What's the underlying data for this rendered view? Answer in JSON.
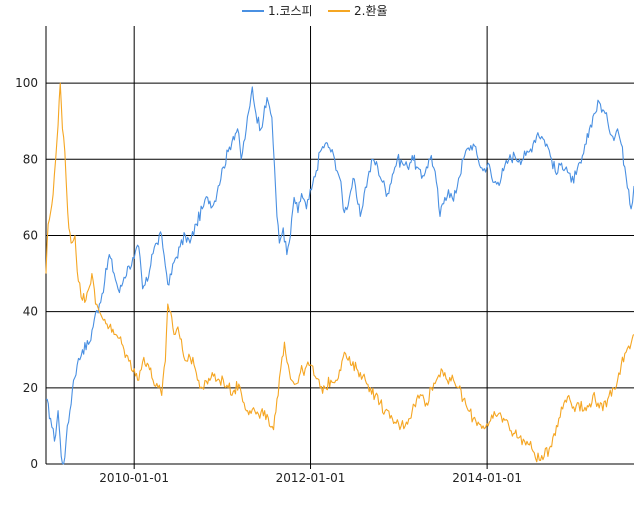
{
  "chart_data": {
    "type": "line",
    "legend_position": "top-center",
    "grid": true,
    "xlim": [
      "2009-01-01",
      "2015-09-01"
    ],
    "ylim": [
      0,
      115
    ],
    "y_ticks": [
      0,
      20,
      40,
      60,
      80,
      100
    ],
    "x_ticks": [
      {
        "date": "2010-01-01",
        "label": "2010-01-01"
      },
      {
        "date": "2012-01-01",
        "label": "2012-01-01"
      },
      {
        "date": "2014-01-01",
        "label": "2014-01-01"
      }
    ],
    "series": [
      {
        "name": "1.코스피",
        "color": "#4a90e2",
        "points": [
          [
            "2009-01-01",
            17
          ],
          [
            "2009-01-20",
            12
          ],
          [
            "2009-02-05",
            6
          ],
          [
            "2009-02-20",
            14
          ],
          [
            "2009-03-05",
            2
          ],
          [
            "2009-03-15",
            0
          ],
          [
            "2009-03-25",
            6
          ],
          [
            "2009-04-10",
            14
          ],
          [
            "2009-04-25",
            22
          ],
          [
            "2009-05-10",
            26
          ],
          [
            "2009-06-01",
            30
          ],
          [
            "2009-07-01",
            32
          ],
          [
            "2009-07-20",
            38
          ],
          [
            "2009-08-10",
            42
          ],
          [
            "2009-09-01",
            48
          ],
          [
            "2009-09-20",
            55
          ],
          [
            "2009-10-10",
            50
          ],
          [
            "2009-11-01",
            45
          ],
          [
            "2009-11-20",
            49
          ],
          [
            "2009-12-10",
            52
          ],
          [
            "2010-01-01",
            54
          ],
          [
            "2010-01-20",
            57
          ],
          [
            "2010-02-05",
            46
          ],
          [
            "2010-02-25",
            48
          ],
          [
            "2010-03-15",
            55
          ],
          [
            "2010-04-05",
            58
          ],
          [
            "2010-04-25",
            60
          ],
          [
            "2010-05-10",
            52
          ],
          [
            "2010-05-25",
            47
          ],
          [
            "2010-06-15",
            53
          ],
          [
            "2010-07-10",
            57
          ],
          [
            "2010-08-01",
            60
          ],
          [
            "2010-08-20",
            58
          ],
          [
            "2010-09-15",
            63
          ],
          [
            "2010-10-10",
            67
          ],
          [
            "2010-11-01",
            70
          ],
          [
            "2010-11-25",
            68
          ],
          [
            "2010-12-15",
            73
          ],
          [
            "2011-01-05",
            78
          ],
          [
            "2011-01-25",
            82
          ],
          [
            "2011-02-15",
            86
          ],
          [
            "2011-03-05",
            88
          ],
          [
            "2011-03-20",
            80
          ],
          [
            "2011-04-10",
            88
          ],
          [
            "2011-04-25",
            94
          ],
          [
            "2011-05-05",
            99
          ],
          [
            "2011-05-20",
            92
          ],
          [
            "2011-06-10",
            88
          ],
          [
            "2011-06-25",
            94
          ],
          [
            "2011-07-10",
            95
          ],
          [
            "2011-07-25",
            91
          ],
          [
            "2011-08-05",
            78
          ],
          [
            "2011-08-15",
            65
          ],
          [
            "2011-08-25",
            58
          ],
          [
            "2011-09-10",
            62
          ],
          [
            "2011-09-25",
            55
          ],
          [
            "2011-10-10",
            60
          ],
          [
            "2011-10-25",
            70
          ],
          [
            "2011-11-10",
            66
          ],
          [
            "2011-11-25",
            71
          ],
          [
            "2011-12-15",
            67
          ],
          [
            "2012-01-05",
            72
          ],
          [
            "2012-01-25",
            77
          ],
          [
            "2012-02-10",
            82
          ],
          [
            "2012-03-01",
            84
          ],
          [
            "2012-03-20",
            83
          ],
          [
            "2012-04-10",
            80
          ],
          [
            "2012-05-01",
            75
          ],
          [
            "2012-05-20",
            66
          ],
          [
            "2012-06-10",
            70
          ],
          [
            "2012-06-25",
            75
          ],
          [
            "2012-07-10",
            70
          ],
          [
            "2012-07-25",
            65
          ],
          [
            "2012-08-10",
            71
          ],
          [
            "2012-08-25",
            75
          ],
          [
            "2012-09-15",
            80
          ],
          [
            "2012-10-05",
            78
          ],
          [
            "2012-10-25",
            74
          ],
          [
            "2012-11-15",
            71
          ],
          [
            "2012-12-05",
            76
          ],
          [
            "2012-12-25",
            80
          ],
          [
            "2013-01-15",
            79
          ],
          [
            "2013-02-05",
            78
          ],
          [
            "2013-02-25",
            81
          ],
          [
            "2013-03-15",
            78
          ],
          [
            "2013-04-05",
            75
          ],
          [
            "2013-04-25",
            78
          ],
          [
            "2013-05-15",
            81
          ],
          [
            "2013-06-05",
            74
          ],
          [
            "2013-06-20",
            65
          ],
          [
            "2013-07-10",
            70
          ],
          [
            "2013-07-25",
            72
          ],
          [
            "2013-08-15",
            69
          ],
          [
            "2013-09-05",
            75
          ],
          [
            "2013-09-25",
            80
          ],
          [
            "2013-10-15",
            83
          ],
          [
            "2013-11-05",
            84
          ],
          [
            "2013-11-25",
            80
          ],
          [
            "2013-12-15",
            77
          ],
          [
            "2014-01-05",
            79
          ],
          [
            "2014-01-25",
            74
          ],
          [
            "2014-02-15",
            74
          ],
          [
            "2014-03-10",
            77
          ],
          [
            "2014-04-01",
            80
          ],
          [
            "2014-04-25",
            81
          ],
          [
            "2014-05-15",
            80
          ],
          [
            "2014-06-10",
            81
          ],
          [
            "2014-06-25",
            82
          ],
          [
            "2014-07-15",
            85
          ],
          [
            "2014-07-30",
            87
          ],
          [
            "2014-08-15",
            86
          ],
          [
            "2014-09-05",
            84
          ],
          [
            "2014-09-25",
            80
          ],
          [
            "2014-10-15",
            76
          ],
          [
            "2014-11-05",
            79
          ],
          [
            "2014-11-25",
            78
          ],
          [
            "2014-12-15",
            74
          ],
          [
            "2015-01-05",
            76
          ],
          [
            "2015-01-25",
            79
          ],
          [
            "2015-02-15",
            84
          ],
          [
            "2015-03-05",
            89
          ],
          [
            "2015-03-20",
            92
          ],
          [
            "2015-04-10",
            95
          ],
          [
            "2015-04-25",
            93
          ],
          [
            "2015-05-15",
            90
          ],
          [
            "2015-06-05",
            86
          ],
          [
            "2015-06-25",
            88
          ],
          [
            "2015-07-10",
            84
          ],
          [
            "2015-07-25",
            78
          ],
          [
            "2015-08-10",
            72
          ],
          [
            "2015-08-20",
            67
          ],
          [
            "2015-09-01",
            73
          ]
        ]
      },
      {
        "name": "2.환율",
        "color": "#f5a623",
        "points": [
          [
            "2009-01-01",
            50
          ],
          [
            "2009-01-10",
            63
          ],
          [
            "2009-01-25",
            68
          ],
          [
            "2009-02-10",
            80
          ],
          [
            "2009-02-20",
            89
          ],
          [
            "2009-03-01",
            100
          ],
          [
            "2009-03-10",
            88
          ],
          [
            "2009-03-20",
            82
          ],
          [
            "2009-04-01",
            66
          ],
          [
            "2009-04-15",
            58
          ],
          [
            "2009-05-01",
            60
          ],
          [
            "2009-05-15",
            48
          ],
          [
            "2009-06-01",
            43
          ],
          [
            "2009-06-20",
            45
          ],
          [
            "2009-07-10",
            50
          ],
          [
            "2009-07-25",
            42
          ],
          [
            "2009-08-10",
            40
          ],
          [
            "2009-09-01",
            38
          ],
          [
            "2009-09-20",
            36
          ],
          [
            "2009-10-10",
            34
          ],
          [
            "2009-11-01",
            33
          ],
          [
            "2009-11-20",
            30
          ],
          [
            "2009-12-10",
            27
          ],
          [
            "2010-01-01",
            25
          ],
          [
            "2010-01-20",
            22
          ],
          [
            "2010-02-10",
            28
          ],
          [
            "2010-03-01",
            26
          ],
          [
            "2010-03-20",
            22
          ],
          [
            "2010-04-10",
            20
          ],
          [
            "2010-04-25",
            18
          ],
          [
            "2010-05-10",
            27
          ],
          [
            "2010-05-20",
            42
          ],
          [
            "2010-06-01",
            40
          ],
          [
            "2010-06-15",
            34
          ],
          [
            "2010-07-01",
            36
          ],
          [
            "2010-07-20",
            30
          ],
          [
            "2010-08-10",
            27
          ],
          [
            "2010-09-01",
            28
          ],
          [
            "2010-09-20",
            22
          ],
          [
            "2010-10-10",
            20
          ],
          [
            "2010-11-01",
            21
          ],
          [
            "2010-11-20",
            24
          ],
          [
            "2010-12-10",
            22
          ],
          [
            "2011-01-05",
            22
          ],
          [
            "2011-01-25",
            20
          ],
          [
            "2011-02-15",
            19
          ],
          [
            "2011-03-10",
            21
          ],
          [
            "2011-04-01",
            16
          ],
          [
            "2011-04-25",
            14
          ],
          [
            "2011-05-15",
            14
          ],
          [
            "2011-06-05",
            12
          ],
          [
            "2011-06-25",
            14
          ],
          [
            "2011-07-15",
            10
          ],
          [
            "2011-08-01",
            9
          ],
          [
            "2011-08-20",
            18
          ],
          [
            "2011-09-05",
            28
          ],
          [
            "2011-09-15",
            32
          ],
          [
            "2011-10-01",
            26
          ],
          [
            "2011-10-15",
            22
          ],
          [
            "2011-11-01",
            21
          ],
          [
            "2011-11-20",
            24
          ],
          [
            "2011-12-10",
            25
          ],
          [
            "2012-01-01",
            26
          ],
          [
            "2012-01-20",
            23
          ],
          [
            "2012-02-10",
            20
          ],
          [
            "2012-03-01",
            20
          ],
          [
            "2012-03-25",
            22
          ],
          [
            "2012-04-15",
            22
          ],
          [
            "2012-05-10",
            27
          ],
          [
            "2012-05-25",
            29
          ],
          [
            "2012-06-15",
            26
          ],
          [
            "2012-07-10",
            25
          ],
          [
            "2012-07-25",
            24
          ],
          [
            "2012-08-15",
            22
          ],
          [
            "2012-09-05",
            20
          ],
          [
            "2012-09-25",
            18
          ],
          [
            "2012-10-15",
            16
          ],
          [
            "2012-11-05",
            14
          ],
          [
            "2012-11-25",
            12
          ],
          [
            "2012-12-15",
            11
          ],
          [
            "2013-01-10",
            10
          ],
          [
            "2013-02-01",
            11
          ],
          [
            "2013-02-25",
            14
          ],
          [
            "2013-03-15",
            17
          ],
          [
            "2013-04-05",
            18
          ],
          [
            "2013-04-25",
            16
          ],
          [
            "2013-05-15",
            20
          ],
          [
            "2013-06-05",
            22
          ],
          [
            "2013-06-25",
            25
          ],
          [
            "2013-07-10",
            24
          ],
          [
            "2013-07-25",
            21
          ],
          [
            "2013-08-15",
            22
          ],
          [
            "2013-09-05",
            20
          ],
          [
            "2013-09-25",
            17
          ],
          [
            "2013-10-15",
            14
          ],
          [
            "2013-11-05",
            12
          ],
          [
            "2013-11-25",
            11
          ],
          [
            "2013-12-15",
            10
          ],
          [
            "2014-01-05",
            10
          ],
          [
            "2014-01-25",
            12
          ],
          [
            "2014-02-15",
            13
          ],
          [
            "2014-03-10",
            12
          ],
          [
            "2014-04-01",
            10
          ],
          [
            "2014-04-25",
            8
          ],
          [
            "2014-05-15",
            7
          ],
          [
            "2014-06-05",
            6
          ],
          [
            "2014-06-25",
            5
          ],
          [
            "2014-07-15",
            3
          ],
          [
            "2014-08-05",
            1
          ],
          [
            "2014-08-25",
            2
          ],
          [
            "2014-09-15",
            4
          ],
          [
            "2014-10-05",
            8
          ],
          [
            "2014-10-25",
            12
          ],
          [
            "2014-11-15",
            16
          ],
          [
            "2014-12-05",
            18
          ],
          [
            "2014-12-25",
            15
          ],
          [
            "2015-01-15",
            16
          ],
          [
            "2015-02-05",
            14
          ],
          [
            "2015-02-25",
            15
          ],
          [
            "2015-03-15",
            18
          ],
          [
            "2015-04-05",
            16
          ],
          [
            "2015-04-25",
            14
          ],
          [
            "2015-05-15",
            17
          ],
          [
            "2015-06-05",
            20
          ],
          [
            "2015-06-25",
            22
          ],
          [
            "2015-07-10",
            26
          ],
          [
            "2015-07-25",
            29
          ],
          [
            "2015-08-10",
            31
          ],
          [
            "2015-08-25",
            33
          ],
          [
            "2015-09-01",
            34
          ]
        ]
      }
    ]
  }
}
